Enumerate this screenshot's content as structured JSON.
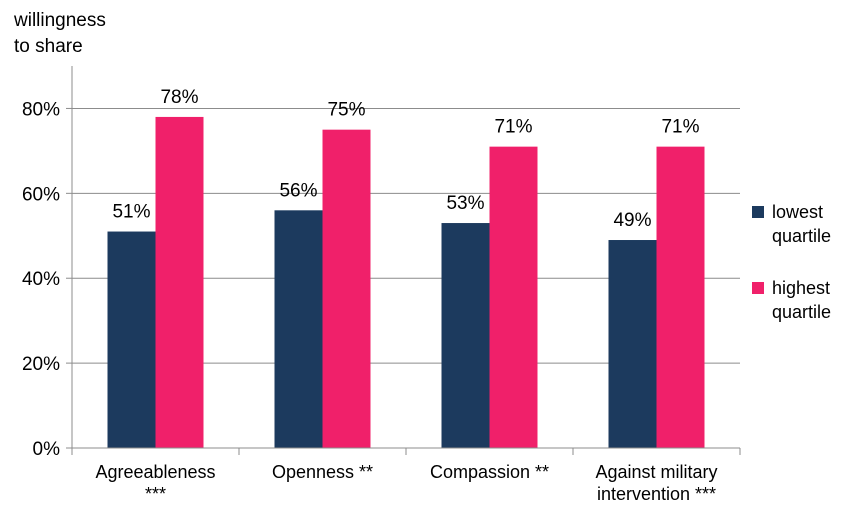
{
  "chart_data": {
    "type": "bar",
    "ylabel": [
      "willingness",
      "to share"
    ],
    "categories": [
      [
        "Agreeableness",
        "***"
      ],
      [
        "Openness **"
      ],
      [
        "Compassion **"
      ],
      [
        "Against military",
        "intervention ***"
      ]
    ],
    "series": [
      {
        "name": [
          "lowest",
          "quartile"
        ],
        "color": "#1c3a5e",
        "values": [
          51,
          56,
          53,
          49
        ],
        "labels": [
          "51%",
          "56%",
          "53%",
          "49%"
        ]
      },
      {
        "name": [
          "highest",
          "quartile"
        ],
        "color": "#f0206a",
        "values": [
          78,
          75,
          71,
          71
        ],
        "labels": [
          "78%",
          "75%",
          "71%",
          "71%"
        ]
      }
    ],
    "ylim": [
      0,
      90
    ],
    "yticks": [
      0,
      20,
      40,
      60,
      80
    ],
    "ytick_labels": [
      "0%",
      "20%",
      "40%",
      "60%",
      "80%"
    ],
    "grid": true,
    "legend": "right"
  }
}
